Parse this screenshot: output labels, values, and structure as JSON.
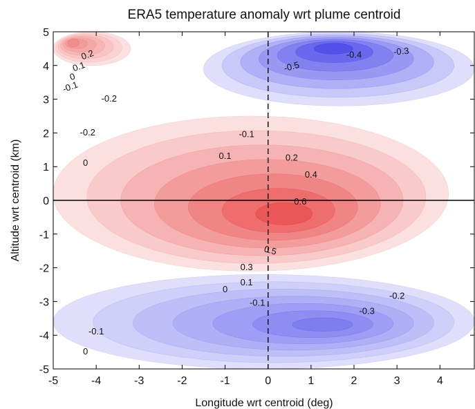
{
  "chart_data": {
    "type": "contour",
    "title": "ERA5 temperature anomaly wrt plume centroid",
    "xlabel": "Longitude wrt centroid (deg)",
    "ylabel": "Altitude wrt centroid (km)",
    "xlim": [
      -5,
      4.8
    ],
    "ylim": [
      -5,
      5
    ],
    "x_ticks": [
      "-5",
      "-4",
      "-3",
      "-2",
      "-1",
      "0",
      "1",
      "2",
      "3",
      "4"
    ],
    "y_ticks": [
      "5",
      "4",
      "3",
      "2",
      "1",
      "0",
      "-1",
      "-2",
      "-3",
      "-4",
      "-5"
    ],
    "reference_lines": {
      "x": 0,
      "y": 0
    },
    "colors": {
      "positive": "#e84040",
      "negative": "#3a3ae8",
      "zero": "#ffffff"
    },
    "features": [
      {
        "sign": "positive",
        "center": [
          0.5,
          -0.5
        ],
        "peak": 0.65,
        "extent_x": [
          -5,
          4.2
        ],
        "extent_y": [
          -2.1,
          2.5
        ]
      },
      {
        "sign": "negative",
        "center": [
          1.5,
          4.6
        ],
        "peak": -0.65,
        "extent_x": [
          -1.5,
          4.8
        ],
        "extent_y": [
          2.8,
          5
        ]
      },
      {
        "sign": "negative",
        "center": [
          1.5,
          -3.7
        ],
        "peak": -0.35,
        "extent_x": [
          -5,
          4.8
        ],
        "extent_y": [
          -5,
          -2.2
        ]
      },
      {
        "sign": "positive",
        "center": [
          -4.6,
          4.7
        ],
        "peak": 0.3,
        "extent_x": [
          -5,
          -3.2
        ],
        "extent_y": [
          4,
          5
        ]
      }
    ],
    "contour_labels": [
      {
        "text": "0.2",
        "x": -4.2,
        "y": 4.3,
        "angle": -20
      },
      {
        "text": "0.1",
        "x": -4.4,
        "y": 3.95,
        "angle": -20
      },
      {
        "text": "0",
        "x": -4.55,
        "y": 3.65,
        "angle": -20
      },
      {
        "text": "-0.1",
        "x": -4.6,
        "y": 3.35,
        "angle": -20
      },
      {
        "text": "-0.2",
        "x": -3.7,
        "y": 3.0,
        "angle": 0
      },
      {
        "text": "-0.2",
        "x": -4.2,
        "y": 2.0,
        "angle": 0
      },
      {
        "text": "0",
        "x": -4.25,
        "y": 1.1,
        "angle": 0
      },
      {
        "text": "-0.1",
        "x": -0.5,
        "y": 1.95,
        "angle": 0
      },
      {
        "text": "0.1",
        "x": -1.0,
        "y": 1.3,
        "angle": 0
      },
      {
        "text": "0.2",
        "x": 0.55,
        "y": 1.25,
        "angle": 0
      },
      {
        "text": "0.4",
        "x": 1.0,
        "y": 0.75,
        "angle": 0
      },
      {
        "text": "0.6",
        "x": 0.75,
        "y": -0.05,
        "angle": 0
      },
      {
        "text": "-0.5",
        "x": 0.55,
        "y": 3.95,
        "angle": -15
      },
      {
        "text": "-0.4",
        "x": 2.0,
        "y": 4.3,
        "angle": 0
      },
      {
        "text": "-0.3",
        "x": 3.1,
        "y": 4.4,
        "angle": -5
      },
      {
        "text": "0.5",
        "x": 0.05,
        "y": -1.5,
        "angle": 15
      },
      {
        "text": "0.3",
        "x": -0.5,
        "y": -2.0,
        "angle": 0
      },
      {
        "text": "0.1",
        "x": -0.5,
        "y": -2.45,
        "angle": 0
      },
      {
        "text": "0",
        "x": -1.0,
        "y": -2.65,
        "angle": 0
      },
      {
        "text": "-0.1",
        "x": -0.25,
        "y": -3.05,
        "angle": 0
      },
      {
        "text": "-0.2",
        "x": 3.0,
        "y": -2.85,
        "angle": 0
      },
      {
        "text": "-0.3",
        "x": 2.3,
        "y": -3.3,
        "angle": 0
      },
      {
        "text": "-0.1",
        "x": -4.0,
        "y": -3.9,
        "angle": 0
      },
      {
        "text": "0",
        "x": -4.25,
        "y": -4.5,
        "angle": 0
      }
    ]
  }
}
